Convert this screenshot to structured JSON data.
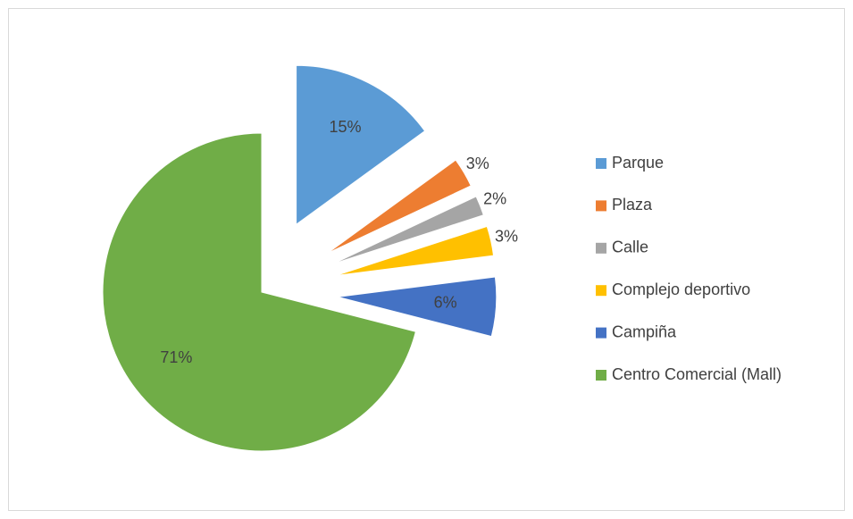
{
  "chart_data": {
    "type": "pie",
    "categories": [
      "Parque",
      "Plaza",
      "Calle",
      "Complejo deportivo",
      "Campiña",
      "Centro Comercial (Mall)"
    ],
    "values": [
      15,
      3,
      2,
      3,
      6,
      71
    ],
    "value_labels": [
      "15%",
      "3%",
      "2%",
      "3%",
      "6%",
      "71%"
    ],
    "colors": [
      "#5b9bd5",
      "#ed7d31",
      "#a5a5a5",
      "#ffc000",
      "#4472c4",
      "#70ad47"
    ],
    "legend": "right"
  }
}
